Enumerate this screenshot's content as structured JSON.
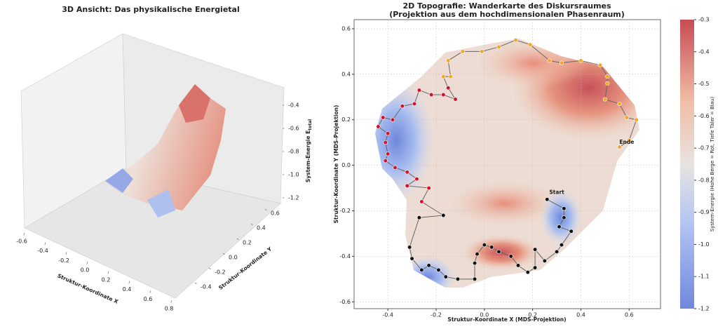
{
  "chart_data": [
    {
      "type": "surface3d",
      "title": "3D Ansicht: Das physikalische Energietal",
      "xlabel": "Struktur-Koordinate X",
      "ylabel": "Struktur-Koordinate Y",
      "zlabel": "System-Energie E",
      "zlabel_sub": "total",
      "xlim": [
        -0.6,
        0.8
      ],
      "xticks": [
        -0.6,
        -0.4,
        -0.2,
        {
          "value": 0,
          "label": "0.0"
        },
        0.2,
        0.4,
        0.6,
        0.8
      ],
      "ylim": [
        -0.6,
        0.6
      ],
      "yticks": [
        -0.4,
        -0.2,
        {
          "value": 0,
          "label": "0.0"
        },
        0.2,
        0.4,
        0.6
      ],
      "zlim": [
        -1.2,
        -0.4
      ],
      "zticks": [
        -0.4,
        -0.6,
        -0.8,
        {
          "value": -1,
          "label": "-1.0"
        },
        -1.2
      ]
    },
    {
      "type": "contour",
      "title": "2D Topografie: Wanderkarte des Diskursraumes",
      "subtitle": "(Projektion aus dem hochdimensionalen Phasenraum)",
      "xlabel": "Struktur-Koordinate X (MDS-Projektion)",
      "ylabel": "Struktur-Koordinate Y (MDS-Projektion)",
      "xlim": [
        -0.54,
        0.73
      ],
      "xticks": [
        -0.4,
        -0.2,
        {
          "value": 0,
          "label": "0.0"
        },
        0.2,
        0.4,
        0.6
      ],
      "ylim": [
        -0.63,
        0.64
      ],
      "yticks": [
        -0.6,
        -0.4,
        -0.2,
        {
          "value": 0,
          "label": "0.0"
        },
        0.2,
        0.4,
        0.6
      ],
      "grid": true,
      "line_color": "#666666",
      "series": [
        {
          "color": "#111111",
          "x": [
            0.26,
            0.33,
            0.33,
            0.31,
            0.36,
            0.32,
            0.3,
            0.25,
            0.21,
            0.21,
            0.18,
            0.14,
            0.11,
            0.06,
            0.03,
            0.0,
            -0.03,
            -0.04,
            -0.04,
            -0.11,
            -0.16,
            -0.19,
            -0.23,
            -0.26,
            -0.3,
            -0.31,
            -0.27,
            -0.17
          ],
          "y": [
            -0.15,
            -0.19,
            -0.23,
            -0.27,
            -0.29,
            -0.35,
            -0.38,
            -0.42,
            -0.37,
            -0.45,
            -0.47,
            -0.44,
            -0.4,
            -0.38,
            -0.36,
            -0.35,
            -0.39,
            -0.43,
            -0.5,
            -0.5,
            -0.49,
            -0.46,
            -0.44,
            -0.46,
            -0.41,
            -0.36,
            -0.23,
            -0.22
          ]
        },
        {
          "color": "#d7102a",
          "x": [
            -0.26,
            -0.23,
            -0.32,
            -0.28,
            -0.32,
            -0.37,
            -0.41,
            -0.4,
            -0.41,
            -0.4,
            -0.44,
            -0.42,
            -0.38,
            -0.34,
            -0.29,
            -0.27,
            -0.22,
            -0.17,
            -0.12,
            -0.15
          ],
          "y": [
            -0.16,
            -0.1,
            -0.09,
            -0.06,
            -0.03,
            -0.01,
            0.02,
            0.05,
            0.1,
            0.14,
            0.17,
            0.21,
            0.2,
            0.26,
            0.27,
            0.33,
            0.31,
            0.31,
            0.29,
            0.34
          ]
        },
        {
          "color": "#f5a623",
          "x": [
            -0.17,
            -0.14,
            -0.15,
            -0.09,
            -0.01,
            0.06,
            0.13,
            0.19,
            0.27,
            0.32,
            0.4,
            0.48,
            0.51,
            0.51,
            0.5,
            0.56,
            0.59,
            0.63,
            0.6,
            0.56
          ],
          "y": [
            0.39,
            0.39,
            0.46,
            0.5,
            0.5,
            0.52,
            0.55,
            0.53,
            0.46,
            0.45,
            0.46,
            0.44,
            0.39,
            0.36,
            0.29,
            0.27,
            0.21,
            0.2,
            0.11,
            0.08
          ]
        }
      ],
      "annotations": [
        {
          "text": "Start",
          "x": 0.3,
          "y": -0.12
        },
        {
          "text": "Ende",
          "x": 0.59,
          "y": 0.1
        }
      ],
      "colorbar": {
        "label": "System-Energie (Hohe Berge = Rot, Tiefe Täler = Blau)",
        "lim": [
          -1.2,
          -0.3
        ],
        "ticks": [
          -0.3,
          -0.4,
          -0.5,
          -0.6,
          -0.7,
          -0.8,
          -0.9,
          {
            "value": -1,
            "label": "-1.0"
          },
          -1.1,
          -1.2
        ]
      }
    }
  ]
}
